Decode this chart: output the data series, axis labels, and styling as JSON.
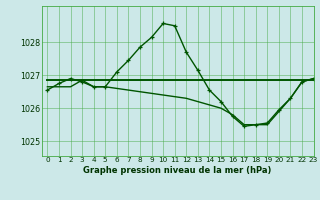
{
  "title": "Graphe pression niveau de la mer (hPa)",
  "bg_color": "#cce8e8",
  "grid_color": "#44aa44",
  "line_color": "#005500",
  "xlim": [
    -0.5,
    23
  ],
  "ylim": [
    1024.55,
    1029.1
  ],
  "yticks": [
    1025,
    1026,
    1027,
    1028
  ],
  "xticks": [
    0,
    1,
    2,
    3,
    4,
    5,
    6,
    7,
    8,
    9,
    10,
    11,
    12,
    13,
    14,
    15,
    16,
    17,
    18,
    19,
    20,
    21,
    22,
    23
  ],
  "series": [
    {
      "name": "main_with_markers",
      "x": [
        0,
        1,
        2,
        3,
        4,
        5,
        6,
        7,
        8,
        9,
        10,
        11,
        12,
        13,
        14,
        15,
        16,
        17,
        18,
        19,
        20,
        21,
        22,
        23
      ],
      "y": [
        1026.55,
        1026.75,
        1026.9,
        1026.8,
        1026.65,
        1026.65,
        1027.1,
        1027.45,
        1027.85,
        1028.15,
        1028.57,
        1028.5,
        1027.7,
        1027.15,
        1026.55,
        1026.2,
        1025.75,
        1025.45,
        1025.5,
        1025.55,
        1025.95,
        1026.3,
        1026.8,
        1026.9
      ],
      "linewidth": 1.0,
      "marker": "+",
      "markersize": 3.5
    },
    {
      "name": "flat_line",
      "x": [
        0,
        1,
        2,
        3,
        4,
        5,
        6,
        7,
        8,
        9,
        10,
        11,
        12,
        13,
        14,
        15,
        16,
        17,
        18,
        19,
        20,
        21,
        22,
        23
      ],
      "y": [
        1026.87,
        1026.87,
        1026.87,
        1026.87,
        1026.87,
        1026.87,
        1026.87,
        1026.87,
        1026.87,
        1026.87,
        1026.87,
        1026.87,
        1026.87,
        1026.87,
        1026.87,
        1026.87,
        1026.87,
        1026.87,
        1026.87,
        1026.87,
        1026.87,
        1026.87,
        1026.87,
        1026.87
      ],
      "linewidth": 1.4,
      "marker": null,
      "markersize": 0
    },
    {
      "name": "diagonal_line",
      "x": [
        0,
        1,
        2,
        3,
        4,
        5,
        6,
        7,
        8,
        9,
        10,
        11,
        12,
        13,
        14,
        15,
        16,
        17,
        18,
        19,
        20,
        21,
        22,
        23
      ],
      "y": [
        1026.65,
        1026.65,
        1026.65,
        1026.85,
        1026.65,
        1026.65,
        1026.6,
        1026.55,
        1026.5,
        1026.45,
        1026.4,
        1026.35,
        1026.3,
        1026.2,
        1026.1,
        1026.0,
        1025.8,
        1025.5,
        1025.5,
        1025.5,
        1025.9,
        1026.3,
        1026.8,
        1026.9
      ],
      "linewidth": 1.0,
      "marker": null,
      "markersize": 0
    }
  ],
  "tick_fontsize": 5.2,
  "ytick_fontsize": 5.8,
  "xlabel_fontsize": 6.0,
  "tick_color": "#003300",
  "xlabel_color": "#003300"
}
